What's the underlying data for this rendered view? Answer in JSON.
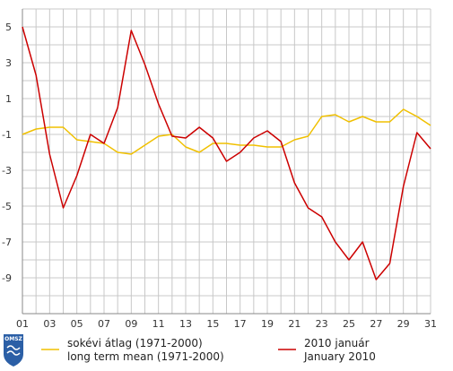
{
  "chart_data": {
    "type": "line",
    "x": [
      "01",
      "02",
      "03",
      "04",
      "05",
      "06",
      "07",
      "08",
      "09",
      "10",
      "11",
      "12",
      "13",
      "14",
      "15",
      "16",
      "17",
      "18",
      "19",
      "20",
      "21",
      "22",
      "23",
      "24",
      "25",
      "26",
      "27",
      "28",
      "29",
      "30",
      "31"
    ],
    "x_tick_labels": [
      "01",
      "03",
      "05",
      "07",
      "09",
      "11",
      "13",
      "15",
      "17",
      "19",
      "21",
      "23",
      "25",
      "27",
      "29",
      "31"
    ],
    "y_tick_labels": [
      "5",
      "3",
      "1",
      "-1",
      "-3",
      "-5",
      "-7",
      "-9"
    ],
    "ylim": [
      -11,
      6
    ],
    "grid": true,
    "series": [
      {
        "name_lines": [
          "sokévi átlag (1971-2000)",
          "long term mean (1971-2000)"
        ],
        "color": "#f0c000",
        "values": [
          -1.0,
          -0.7,
          -0.6,
          -0.6,
          -1.3,
          -1.4,
          -1.5,
          -2.0,
          -2.1,
          -1.6,
          -1.1,
          -1.0,
          -1.7,
          -2.0,
          -1.5,
          -1.5,
          -1.6,
          -1.6,
          -1.7,
          -1.7,
          -1.3,
          -1.1,
          0.0,
          0.1,
          -0.3,
          0.0,
          -0.3,
          -0.3,
          0.4,
          0.0,
          -0.5
        ]
      },
      {
        "name_lines": [
          "2010 január",
          "January 2010"
        ],
        "color": "#cc0000",
        "values": [
          5.0,
          2.3,
          -2.1,
          -5.1,
          -3.3,
          -1.0,
          -1.5,
          0.5,
          4.8,
          2.9,
          0.7,
          -1.1,
          -1.2,
          -0.6,
          -1.2,
          -2.5,
          -2.0,
          -1.2,
          -0.8,
          -1.4,
          -3.7,
          -5.1,
          -5.6,
          -7.0,
          -8.0,
          -7.0,
          -9.1,
          -8.2,
          -3.9,
          -0.9,
          -1.8
        ]
      }
    ]
  },
  "logo": {
    "text": "OMSZ"
  }
}
